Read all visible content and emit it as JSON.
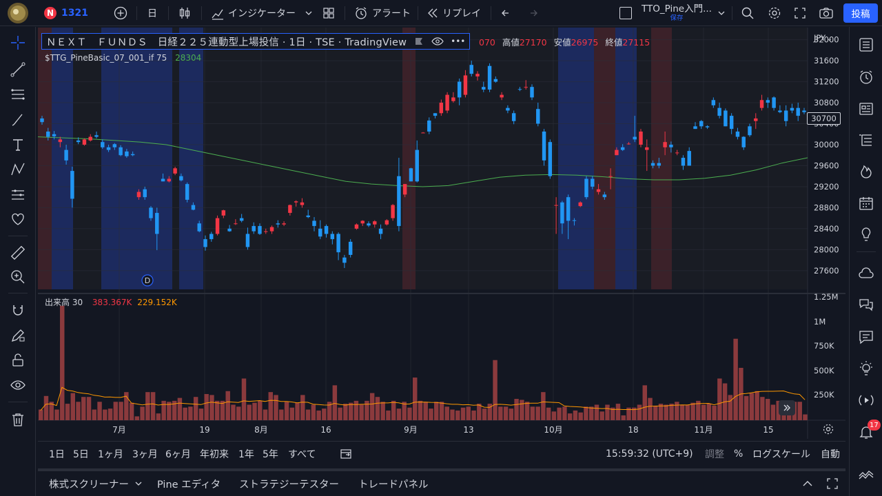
{
  "topbar": {
    "symbol_letter": "N",
    "symbol_code": "1321",
    "interval": "日",
    "indicators": "インジケーター",
    "alerts": "アラート",
    "replay": "リプレイ",
    "layout_name": "TTO_Pine入門...",
    "layout_status": "保存",
    "publish": "投稿"
  },
  "legend": {
    "title": "ＮＥＸＴ　ＦＵＮＤＳ　日経２２５連動型上場投信 · 1日 · TSE · TradingView",
    "ohlc_open_value": "070",
    "high_label": "高値",
    "high_value": "27170",
    "low_label": "安値",
    "low_value": "26975",
    "close_label": "終値",
    "close_value": "27115",
    "indicator_name": "$TTG_PineBasic_07_001_if 75",
    "indicator_value": "28304",
    "volume_name": "出来高 30",
    "volume_value": "383.367K",
    "volume_ma_value": "229.152K"
  },
  "price_axis": {
    "currency": "JPY",
    "labels": [
      "32000",
      "31600",
      "31200",
      "30800",
      "30400",
      "30000",
      "29600",
      "29200",
      "28800",
      "28400",
      "28000",
      "27600"
    ],
    "current_price": "30700",
    "volume_labels": [
      "1.25M",
      "1M",
      "750K",
      "500K",
      "250K"
    ]
  },
  "time_axis": {
    "labels": [
      "7月",
      "19",
      "8月",
      "16",
      "9月",
      "13",
      "10月",
      "18",
      "11月",
      "15"
    ]
  },
  "timeframes": {
    "ranges": [
      "1日",
      "5日",
      "1ヶ月",
      "3ヶ月",
      "6ヶ月",
      "年初来",
      "1年",
      "5年",
      "すべて"
    ],
    "clock": "15:59:32 (UTC+9)",
    "adjust": "調整",
    "percent": "%",
    "log_scale": "ログスケール",
    "auto": "自動"
  },
  "bottom_panel": {
    "tabs": [
      "株式スクリーナー",
      "Pine エディタ",
      "ストラテジーテスター",
      "トレードパネル"
    ]
  },
  "right_toolbar": {
    "notification_count": "17"
  },
  "chart_data": {
    "type": "candlestick",
    "ylim": [
      27600,
      32000
    ],
    "candles": [
      [
        30500,
        30550,
        30380,
        30430
      ],
      [
        30250,
        30320,
        30080,
        30150
      ],
      [
        30200,
        30260,
        30100,
        30160
      ],
      [
        30050,
        30150,
        29950,
        30100
      ],
      [
        29900,
        30000,
        29620,
        29700
      ],
      [
        29500,
        29580,
        28800,
        28970
      ],
      [
        30080,
        30140,
        30010,
        30050
      ],
      [
        30000,
        30120,
        29980,
        30100
      ],
      [
        30080,
        30200,
        30060,
        30150
      ],
      [
        30180,
        30250,
        30120,
        30150
      ],
      [
        30050,
        30100,
        29920,
        29950
      ],
      [
        29950,
        30000,
        29860,
        29900
      ],
      [
        30010,
        30030,
        29900,
        29950
      ],
      [
        29950,
        29990,
        29780,
        29800
      ],
      [
        29870,
        29920,
        29750,
        29780
      ],
      [
        29820,
        29870,
        29780,
        29800
      ],
      [
        29000,
        29150,
        28950,
        29100
      ],
      [
        29150,
        29200,
        28950,
        29000
      ],
      [
        28800,
        28830,
        28550,
        28600
      ],
      [
        28700,
        28800,
        27990,
        28300
      ],
      [
        29350,
        29450,
        29300,
        29300
      ],
      [
        29300,
        29400,
        29280,
        29350
      ],
      [
        29450,
        29580,
        29420,
        29550
      ],
      [
        29400,
        29450,
        29300,
        29320
      ],
      [
        29250,
        29280,
        28900,
        28950
      ],
      [
        28850,
        28900,
        28750,
        28760
      ],
      [
        28500,
        28550,
        28330,
        28350
      ],
      [
        28200,
        28270,
        27980,
        28050
      ],
      [
        28300,
        28340,
        28150,
        28200
      ],
      [
        28300,
        28650,
        28270,
        28600
      ],
      [
        28650,
        28760,
        28600,
        28750
      ],
      [
        28400,
        28470,
        28340,
        28350
      ],
      [
        28500,
        28580,
        28470,
        28500
      ],
      [
        28600,
        28680,
        28520,
        28550
      ],
      [
        28300,
        28420,
        28000,
        28050
      ],
      [
        28450,
        28520,
        28300,
        28350
      ],
      [
        28450,
        28500,
        28280,
        28300
      ],
      [
        28350,
        28400,
        28300,
        28350
      ],
      [
        28350,
        28460,
        28300,
        28430
      ],
      [
        28500,
        28560,
        28420,
        28480
      ],
      [
        28480,
        28540,
        28450,
        28500
      ],
      [
        28700,
        28860,
        28650,
        28850
      ],
      [
        28900,
        28940,
        28820,
        28920
      ],
      [
        28850,
        28980,
        28800,
        28900
      ],
      [
        28650,
        28760,
        28600,
        28620
      ],
      [
        28550,
        28620,
        28350,
        28450
      ],
      [
        28400,
        28560,
        28200,
        28250
      ],
      [
        28450,
        28480,
        28230,
        28300
      ],
      [
        28300,
        28350,
        28100,
        28200
      ],
      [
        28300,
        28330,
        27800,
        27950
      ],
      [
        27850,
        27900,
        27650,
        27750
      ],
      [
        28150,
        28200,
        27850,
        27900
      ],
      [
        28400,
        28500,
        28380,
        28480
      ],
      [
        28500,
        28560,
        28450,
        28550
      ],
      [
        28500,
        28540,
        28430,
        28460
      ],
      [
        28480,
        28560,
        28420,
        28540
      ],
      [
        28400,
        28480,
        28200,
        28300
      ],
      [
        28480,
        28580,
        28460,
        28560
      ],
      [
        28600,
        28870,
        28550,
        28850
      ],
      [
        29400,
        29750,
        28350,
        28450
      ],
      [
        29050,
        29250,
        29000,
        29250
      ],
      [
        29550,
        29560,
        29300,
        29300
      ],
      [
        29900,
        30080,
        29280,
        29300
      ],
      [
        30230,
        30240,
        30230,
        30230
      ],
      [
        30460,
        30520,
        30200,
        30250
      ],
      [
        30600,
        30600,
        30500,
        30550
      ],
      [
        30600,
        30860,
        30550,
        30800
      ],
      [
        30650,
        31000,
        30600,
        30950
      ],
      [
        30830,
        31000,
        30800,
        30900
      ],
      [
        31200,
        31260,
        30750,
        30900
      ],
      [
        30950,
        31420,
        30900,
        31320
      ],
      [
        31520,
        31600,
        31300,
        31350
      ],
      [
        31300,
        31400,
        31220,
        31350
      ],
      [
        31100,
        31200,
        31000,
        31050
      ],
      [
        31500,
        31550,
        31000,
        31050
      ],
      [
        31250,
        31300,
        31180,
        31200
      ],
      [
        30900,
        31000,
        30850,
        30950
      ],
      [
        30700,
        30750,
        30600,
        30650
      ],
      [
        30600,
        30650,
        30390,
        30450
      ],
      [
        31060,
        31100,
        31020,
        31050
      ],
      [
        31100,
        31230,
        31050,
        31100
      ],
      [
        31100,
        31150,
        30850,
        30900
      ],
      [
        30680,
        30800,
        30350,
        30400
      ],
      [
        30250,
        30300,
        29600,
        29700
      ],
      [
        30050,
        30100,
        29350,
        29400
      ],
      [
        28850,
        29000,
        28300,
        28850
      ],
      [
        28900,
        28930,
        28300,
        28500
      ],
      [
        29000,
        29050,
        28200,
        28550
      ],
      [
        28560,
        28600,
        28460,
        28550
      ],
      [
        28830,
        28920,
        28810,
        28900
      ],
      [
        29350,
        29400,
        28960,
        29000
      ],
      [
        29350,
        29400,
        29150,
        29200
      ],
      [
        29100,
        29250,
        29050,
        29150
      ],
      [
        29050,
        29100,
        28950,
        29000
      ],
      [
        29400,
        29550,
        29150,
        29400
      ],
      [
        29800,
        29950,
        29800,
        29900
      ],
      [
        29950,
        30010,
        29880,
        29900
      ],
      [
        30020,
        30050,
        30000,
        30020
      ],
      [
        30150,
        30550,
        30050,
        30100
      ],
      [
        30000,
        30300,
        29950,
        30250
      ],
      [
        29900,
        30100,
        29500,
        29950
      ],
      [
        29650,
        29700,
        29550,
        29600
      ],
      [
        29650,
        29750,
        29550,
        29600
      ],
      [
        29950,
        30250,
        29800,
        30050
      ],
      [
        30000,
        30060,
        29850,
        29950
      ],
      [
        29850,
        29900,
        29800,
        29850
      ],
      [
        29750,
        29800,
        29520,
        29600
      ],
      [
        29880,
        29950,
        29600,
        29600
      ],
      [
        30350,
        30430,
        30300,
        30300
      ],
      [
        30450,
        30470,
        30300,
        30350
      ],
      [
        30350,
        30370,
        30300,
        30330
      ],
      [
        30850,
        30900,
        30700,
        30750
      ],
      [
        30700,
        30800,
        30500,
        30550
      ],
      [
        30650,
        30690,
        30350,
        30350
      ],
      [
        30550,
        30600,
        30200,
        30300
      ],
      [
        30250,
        30320,
        30100,
        30150
      ],
      [
        30150,
        30160,
        29900,
        29950
      ],
      [
        30350,
        30400,
        30150,
        30180
      ],
      [
        30450,
        30600,
        30300,
        30500
      ],
      [
        30700,
        30950,
        30650,
        30850
      ],
      [
        30850,
        30900,
        30700,
        30800
      ],
      [
        30900,
        30920,
        30650,
        30700
      ],
      [
        30650,
        30750,
        30600,
        30620
      ],
      [
        30650,
        30750,
        30350,
        30450
      ],
      [
        30700,
        30780,
        30600,
        30650
      ],
      [
        30700,
        30800,
        30450,
        30550
      ],
      [
        30650,
        30700,
        30580,
        30620
      ]
    ],
    "indicator_values": [
      30150,
      30130,
      30110,
      30080,
      30050,
      30000,
      29900,
      29800,
      29700,
      29600,
      29500,
      29400,
      29300,
      29250,
      29220,
      29200,
      29220,
      29300,
      29380,
      29420,
      29430,
      29420,
      29390,
      29350,
      29330,
      29330,
      29360,
      29420,
      29520,
      29650,
      29750
    ],
    "volume_values": [
      110,
      250,
      190,
      110,
      1180,
      170,
      280,
      190,
      240,
      240,
      110,
      190,
      110,
      120,
      190,
      190,
      290,
      180,
      40,
      140,
      290,
      290,
      70,
      200,
      190,
      200,
      230,
      130,
      140,
      240,
      120,
      270,
      260,
      200,
      200,
      300,
      160,
      140,
      430,
      160,
      180,
      200,
      110,
      290,
      260,
      110,
      190,
      130,
      180,
      260,
      110,
      160,
      100,
      120,
      190,
      360,
      130,
      170,
      180,
      200,
      160,
      200,
      280,
      240,
      190,
      100,
      200,
      120,
      190,
      130,
      440,
      200,
      190,
      120,
      190,
      190,
      140,
      110,
      100,
      130,
      140,
      100,
      170,
      120,
      170,
      620,
      140,
      140,
      120,
      220,
      210,
      190,
      140,
      140,
      290,
      130,
      90,
      130,
      140,
      70,
      100,
      80,
      140,
      140,
      160,
      90,
      160,
      130,
      170,
      50,
      130,
      130,
      160,
      360,
      230,
      150,
      170,
      160,
      170,
      190,
      160,
      160,
      180,
      200,
      160,
      170,
      150,
      430,
      380,
      260,
      840,
      540,
      250,
      280,
      300,
      240,
      220,
      160,
      200,
      170,
      180,
      190,
      190,
      60
    ],
    "series": [
      {
        "name": "$TTG_PineBasic_07_001_if 75"
      },
      {
        "name": "出来高 30"
      }
    ],
    "bg_zones": [
      {
        "kind": "red"
      },
      {
        "kind": "blue"
      },
      {
        "kind": "dark"
      },
      {
        "kind": "blue"
      },
      {
        "kind": "dark"
      },
      {
        "kind": "blue"
      },
      {
        "kind": "dark"
      },
      {
        "kind": "red"
      },
      {
        "kind": "dark"
      },
      {
        "kind": "blue"
      },
      {
        "kind": "red"
      },
      {
        "kind": "blue"
      },
      {
        "kind": "dark"
      },
      {
        "kind": "red"
      },
      {
        "kind": "dark"
      },
      {
        "kind": "red"
      }
    ]
  },
  "colors": {
    "up": "#f23645",
    "down": "#2196f3",
    "indicator": "#4caf50",
    "volume_bar": "#8b3a3d",
    "volume_ma": "#ff9800",
    "blue_zone": "#1c2a5e",
    "red_zone": "#3b2129",
    "accent": "#2962ff"
  }
}
